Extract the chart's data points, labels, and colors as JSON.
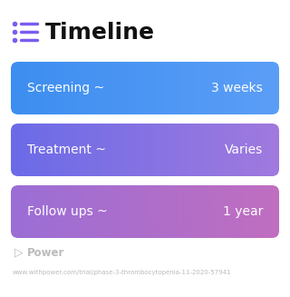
{
  "title": "Timeline",
  "title_icon_color": "#7B5CF0",
  "title_fontsize": 18,
  "background_color": "#ffffff",
  "rows": [
    {
      "label": "Screening ~",
      "value": "3 weeks",
      "color_left": "#3D8EF0",
      "color_right": "#5B9EF7"
    },
    {
      "label": "Treatment ~",
      "value": "Varies",
      "color_left": "#6B6BE8",
      "color_right": "#A07ADE"
    },
    {
      "label": "Follow ups ~",
      "value": "1 year",
      "color_left": "#9B6ED6",
      "color_right": "#C06EC0"
    }
  ],
  "row_text_color": "#ffffff",
  "row_label_fontsize": 10,
  "row_value_fontsize": 10,
  "power_text": "Power",
  "power_color": "#bbbbbb",
  "url_text": "www.withpower.com/trial/phase-3-thrombocytopenia-11-2020-57941",
  "url_color": "#bbbbbb",
  "url_fontsize": 5.0,
  "power_fontsize": 8.5
}
